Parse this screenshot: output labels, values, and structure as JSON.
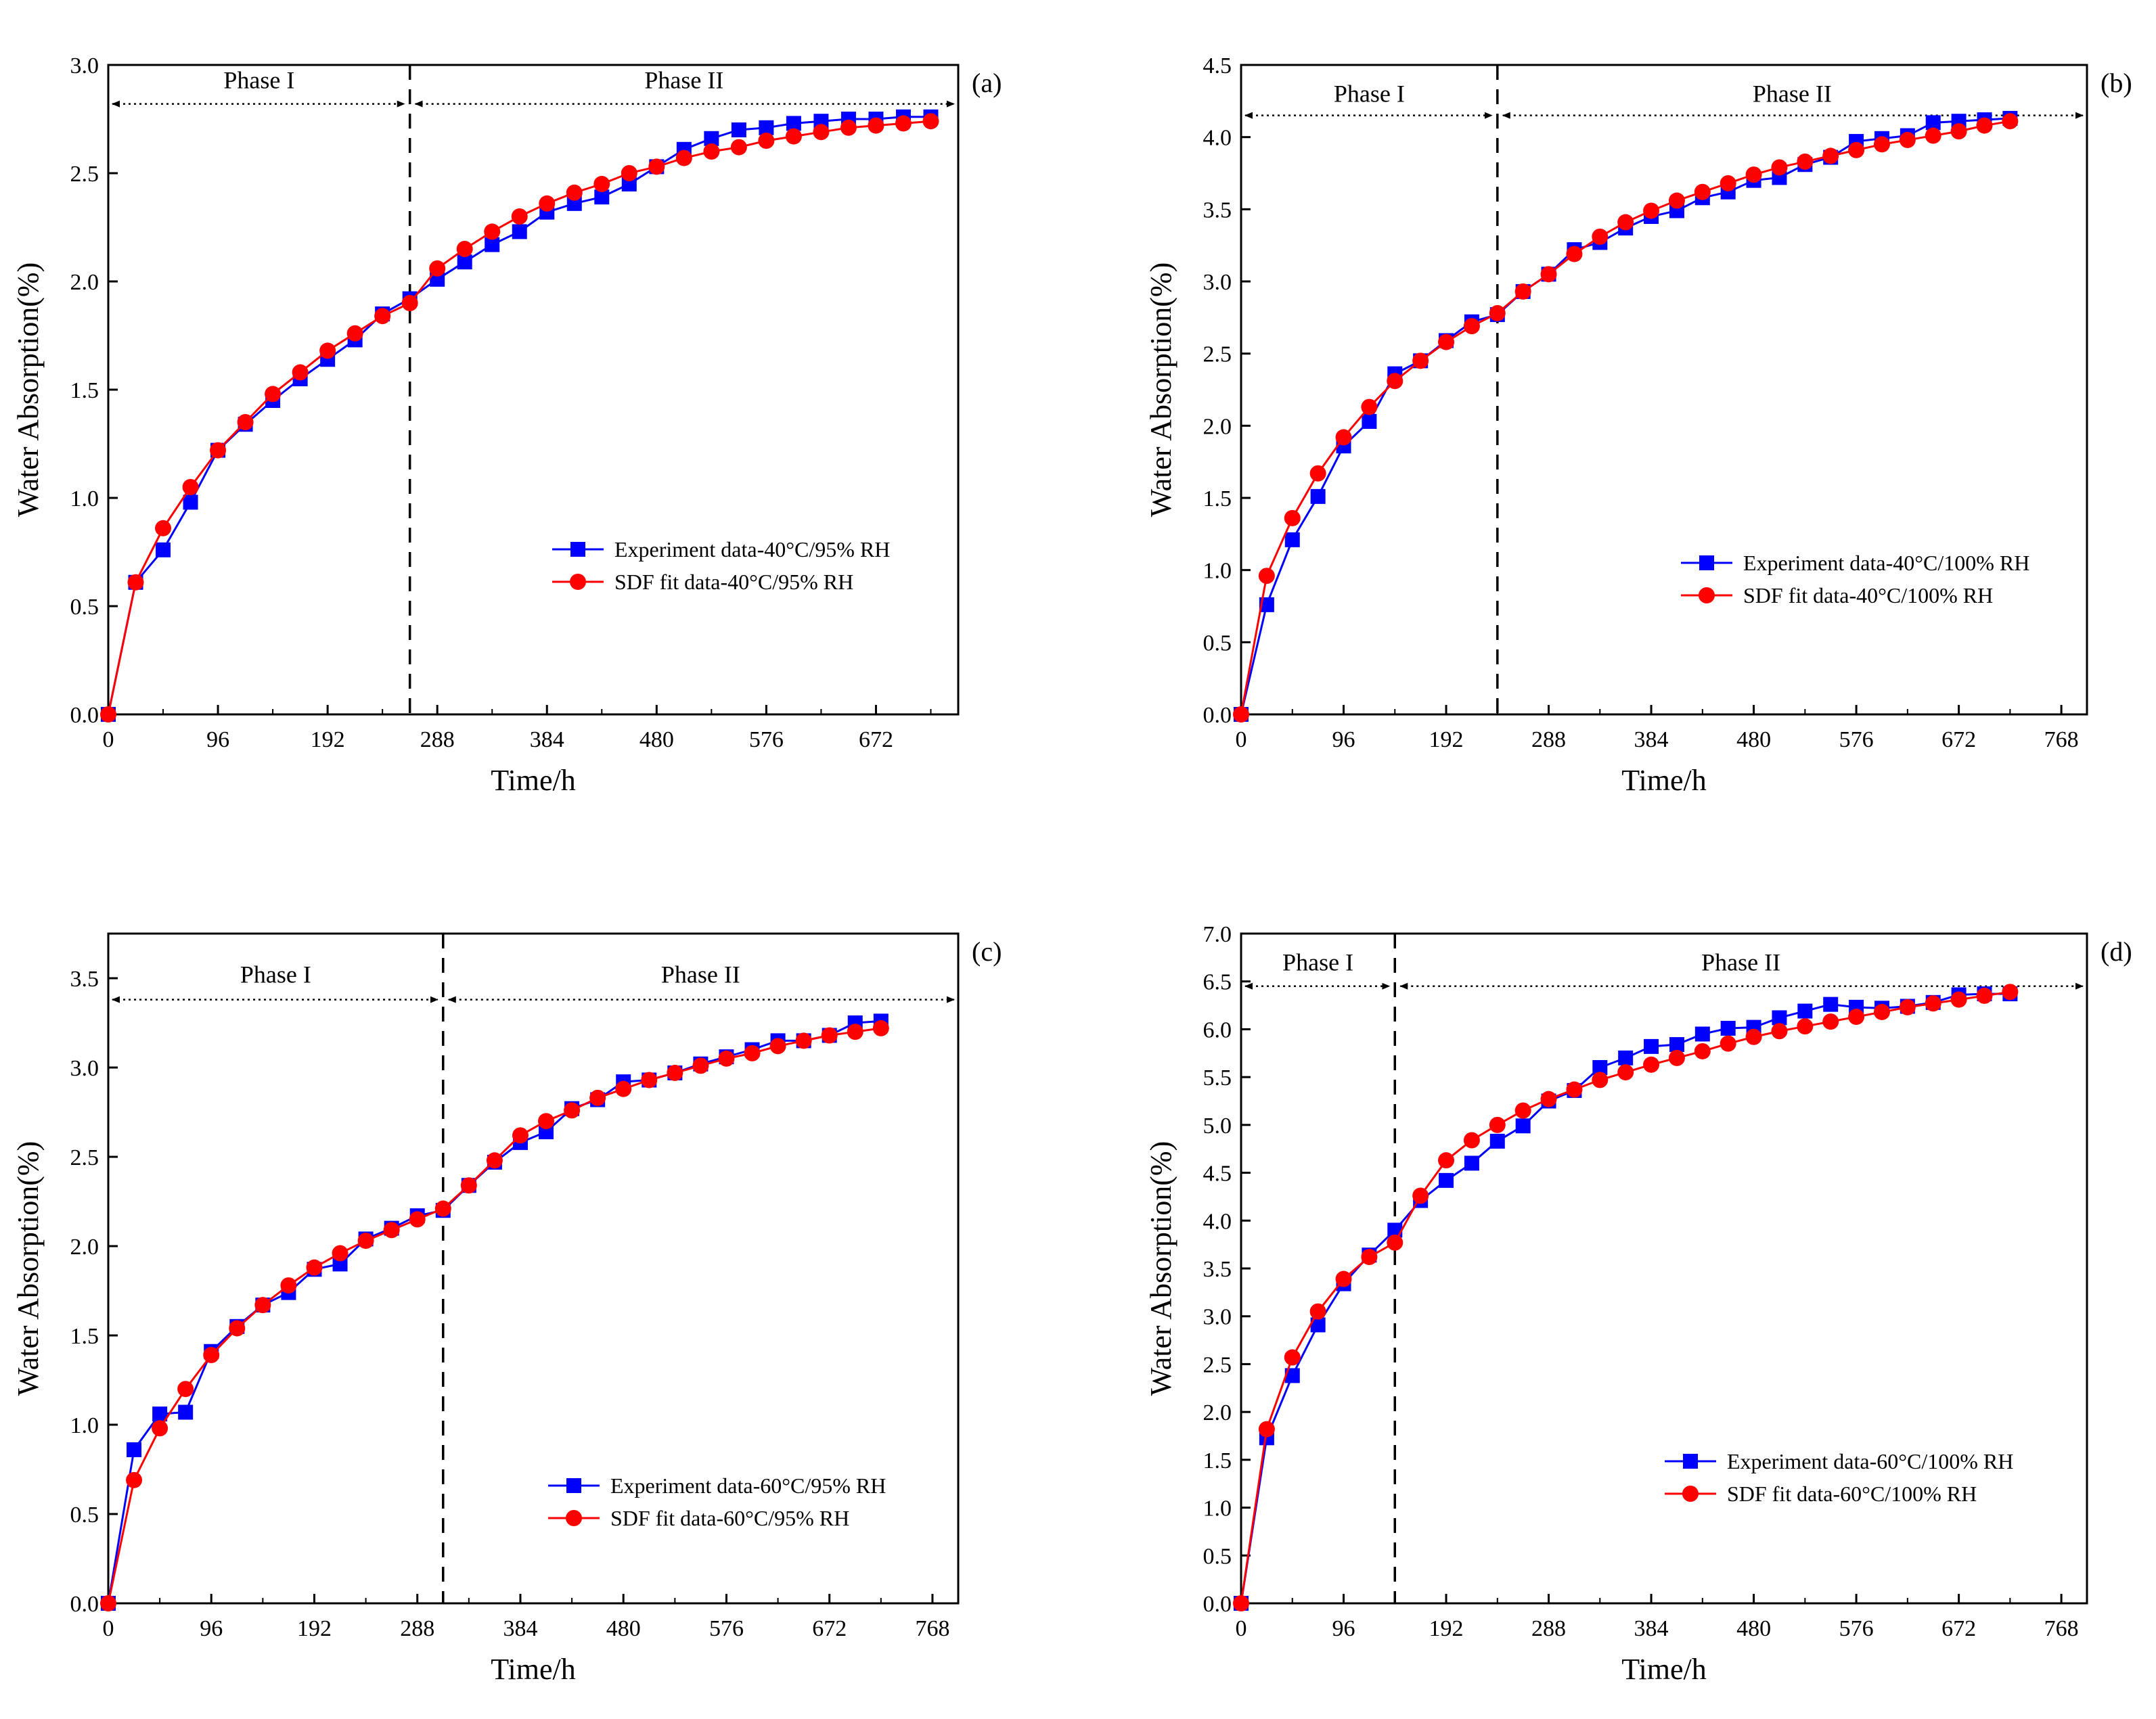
{
  "figure": {
    "series_colors": {
      "experiment": "#0000ff",
      "fit": "#ff0000"
    },
    "axis_color": "#000000"
  },
  "chart_data": [
    {
      "type": "line",
      "panel": "(a)",
      "xlabel": "Time/h",
      "ylabel": "Water Absorption(%)",
      "xlim": [
        0,
        744
      ],
      "ylim": [
        0,
        3.0
      ],
      "xticks": [
        0,
        96,
        192,
        288,
        384,
        480,
        576,
        672
      ],
      "yticks": [
        0.0,
        0.5,
        1.0,
        1.5,
        2.0,
        2.5,
        3.0
      ],
      "ytick_decimals": 1,
      "phase_boundary": 264,
      "phase_arrow_y": 2.82,
      "phase_label_y": 2.93,
      "phases": [
        "Phase I",
        "Phase II"
      ],
      "legend_position": "center-right",
      "series": [
        {
          "name": "Experiment data-40°C/95% RH",
          "marker": "square",
          "color": "#0000ff",
          "x": [
            0,
            24,
            48,
            72,
            96,
            120,
            144,
            168,
            192,
            216,
            240,
            264,
            288,
            312,
            336,
            360,
            384,
            408,
            432,
            456,
            480,
            504,
            528,
            552,
            576,
            600,
            624,
            648,
            672,
            696,
            720
          ],
          "y": [
            0,
            0.61,
            0.76,
            0.98,
            1.22,
            1.34,
            1.45,
            1.55,
            1.64,
            1.73,
            1.85,
            1.92,
            2.01,
            2.09,
            2.17,
            2.23,
            2.32,
            2.36,
            2.39,
            2.45,
            2.53,
            2.61,
            2.66,
            2.7,
            2.71,
            2.73,
            2.74,
            2.75,
            2.75,
            2.76,
            2.76
          ]
        },
        {
          "name": "SDF fit data-40°C/95% RH",
          "marker": "circle",
          "color": "#ff0000",
          "x": [
            0,
            24,
            48,
            72,
            96,
            120,
            144,
            168,
            192,
            216,
            240,
            264,
            288,
            312,
            336,
            360,
            384,
            408,
            432,
            456,
            480,
            504,
            528,
            552,
            576,
            600,
            624,
            648,
            672,
            696,
            720
          ],
          "y": [
            0,
            0.61,
            0.86,
            1.05,
            1.22,
            1.35,
            1.48,
            1.58,
            1.68,
            1.76,
            1.84,
            1.9,
            2.06,
            2.15,
            2.23,
            2.3,
            2.36,
            2.41,
            2.45,
            2.5,
            2.53,
            2.57,
            2.6,
            2.62,
            2.65,
            2.67,
            2.69,
            2.71,
            2.72,
            2.73,
            2.74
          ]
        }
      ]
    },
    {
      "type": "line",
      "panel": "(b)",
      "xlabel": "Time/h",
      "ylabel": "Water Absorption(%)",
      "xlim": [
        0,
        792
      ],
      "ylim": [
        0,
        4.5
      ],
      "xticks": [
        0,
        96,
        192,
        288,
        384,
        480,
        576,
        672,
        768
      ],
      "yticks": [
        0.0,
        0.5,
        1.0,
        1.5,
        2.0,
        2.5,
        3.0,
        3.5,
        4.0,
        4.5
      ],
      "ytick_decimals": 1,
      "phase_boundary": 240,
      "phase_arrow_y": 4.15,
      "phase_label_y": 4.3,
      "phases": [
        "Phase I",
        "Phase II"
      ],
      "legend_position": "center-right",
      "series": [
        {
          "name": "Experiment data-40°C/100% RH",
          "marker": "square",
          "color": "#0000ff",
          "x": [
            0,
            24,
            48,
            72,
            96,
            120,
            144,
            168,
            192,
            216,
            240,
            264,
            288,
            312,
            336,
            360,
            384,
            408,
            432,
            456,
            480,
            504,
            528,
            552,
            576,
            600,
            624,
            648,
            672,
            696,
            720
          ],
          "y": [
            0,
            0.76,
            1.21,
            1.51,
            1.86,
            2.03,
            2.36,
            2.45,
            2.59,
            2.72,
            2.77,
            2.93,
            3.05,
            3.22,
            3.27,
            3.37,
            3.45,
            3.49,
            3.58,
            3.62,
            3.7,
            3.72,
            3.81,
            3.86,
            3.97,
            3.99,
            4.01,
            4.1,
            4.11,
            4.12,
            4.13
          ]
        },
        {
          "name": "SDF fit data-40°C/100% RH",
          "marker": "circle",
          "color": "#ff0000",
          "x": [
            0,
            24,
            48,
            72,
            96,
            120,
            144,
            168,
            192,
            216,
            240,
            264,
            288,
            312,
            336,
            360,
            384,
            408,
            432,
            456,
            480,
            504,
            528,
            552,
            576,
            600,
            624,
            648,
            672,
            696,
            720
          ],
          "y": [
            0,
            0.96,
            1.36,
            1.67,
            1.92,
            2.13,
            2.31,
            2.45,
            2.58,
            2.69,
            2.78,
            2.93,
            3.05,
            3.19,
            3.31,
            3.41,
            3.49,
            3.56,
            3.62,
            3.68,
            3.74,
            3.79,
            3.83,
            3.87,
            3.91,
            3.95,
            3.98,
            4.01,
            4.04,
            4.08,
            4.11
          ]
        }
      ]
    },
    {
      "type": "line",
      "panel": "(c)",
      "xlabel": "Time/h",
      "ylabel": "Water Absorption(%)",
      "xlim": [
        0,
        792
      ],
      "ylim": [
        0,
        3.75
      ],
      "xticks": [
        0,
        96,
        192,
        288,
        384,
        480,
        576,
        672,
        768
      ],
      "yticks": [
        0.0,
        0.5,
        1.0,
        1.5,
        2.0,
        2.5,
        3.0,
        3.5
      ],
      "ytick_decimals": 1,
      "phase_boundary": 312,
      "phase_arrow_y": 3.38,
      "phase_label_y": 3.52,
      "phases": [
        "Phase I",
        "Phase II"
      ],
      "legend_position": "lower-right",
      "series": [
        {
          "name": "Experiment data-60°C/95% RH",
          "marker": "square",
          "color": "#0000ff",
          "x": [
            0,
            24,
            48,
            72,
            96,
            120,
            144,
            168,
            192,
            216,
            240,
            264,
            288,
            312,
            336,
            360,
            384,
            408,
            432,
            456,
            480,
            504,
            528,
            552,
            576,
            600,
            624,
            648,
            672,
            696,
            720
          ],
          "y": [
            0,
            0.86,
            1.06,
            1.07,
            1.41,
            1.55,
            1.67,
            1.74,
            1.87,
            1.9,
            2.04,
            2.1,
            2.17,
            2.2,
            2.34,
            2.47,
            2.58,
            2.64,
            2.77,
            2.82,
            2.92,
            2.93,
            2.97,
            3.02,
            3.06,
            3.1,
            3.15,
            3.15,
            3.18,
            3.25,
            3.26
          ]
        },
        {
          "name": "SDF fit data-60°C/95% RH",
          "marker": "circle",
          "color": "#ff0000",
          "x": [
            0,
            24,
            48,
            72,
            96,
            120,
            144,
            168,
            192,
            216,
            240,
            264,
            288,
            312,
            336,
            360,
            384,
            408,
            432,
            456,
            480,
            504,
            528,
            552,
            576,
            600,
            624,
            648,
            672,
            696,
            720
          ],
          "y": [
            0,
            0.69,
            0.98,
            1.2,
            1.39,
            1.54,
            1.67,
            1.78,
            1.88,
            1.96,
            2.03,
            2.09,
            2.15,
            2.21,
            2.34,
            2.48,
            2.62,
            2.7,
            2.76,
            2.83,
            2.88,
            2.93,
            2.97,
            3.01,
            3.05,
            3.08,
            3.12,
            3.15,
            3.18,
            3.2,
            3.22
          ]
        }
      ]
    },
    {
      "type": "line",
      "panel": "(d)",
      "xlabel": "Time/h",
      "ylabel": "Water Absorption(%)",
      "xlim": [
        0,
        792
      ],
      "ylim": [
        0,
        7.0
      ],
      "xticks": [
        0,
        96,
        192,
        288,
        384,
        480,
        576,
        672,
        768
      ],
      "yticks": [
        0.0,
        0.5,
        1.0,
        1.5,
        2.0,
        2.5,
        3.0,
        3.5,
        4.0,
        4.5,
        5.0,
        5.5,
        6.0,
        6.5,
        7.0
      ],
      "ytick_decimals": 1,
      "phase_boundary": 144,
      "phase_arrow_y": 6.45,
      "phase_label_y": 6.7,
      "phases": [
        "Phase I",
        "Phase II"
      ],
      "legend_position": "lower-right",
      "series": [
        {
          "name": "Experiment data-60°C/100% RH",
          "marker": "square",
          "color": "#0000ff",
          "x": [
            0,
            24,
            48,
            72,
            96,
            120,
            144,
            168,
            192,
            216,
            240,
            264,
            288,
            312,
            336,
            360,
            384,
            408,
            432,
            456,
            480,
            504,
            528,
            552,
            576,
            600,
            624,
            648,
            672,
            696,
            720
          ],
          "y": [
            0,
            1.73,
            2.38,
            2.91,
            3.34,
            3.64,
            3.9,
            4.21,
            4.42,
            4.6,
            4.83,
            4.99,
            5.25,
            5.36,
            5.6,
            5.7,
            5.82,
            5.84,
            5.95,
            6.01,
            6.02,
            6.12,
            6.19,
            6.26,
            6.23,
            6.22,
            6.24,
            6.28,
            6.36,
            6.37,
            6.37
          ]
        },
        {
          "name": "SDF fit data-60°C/100% RH",
          "marker": "circle",
          "color": "#ff0000",
          "x": [
            0,
            24,
            48,
            72,
            96,
            120,
            144,
            168,
            192,
            216,
            240,
            264,
            288,
            312,
            336,
            360,
            384,
            408,
            432,
            456,
            480,
            504,
            528,
            552,
            576,
            600,
            624,
            648,
            672,
            696,
            720
          ],
          "y": [
            0,
            1.82,
            2.57,
            3.05,
            3.39,
            3.62,
            3.77,
            4.26,
            4.63,
            4.84,
            5.0,
            5.15,
            5.27,
            5.37,
            5.47,
            5.55,
            5.63,
            5.7,
            5.77,
            5.85,
            5.92,
            5.98,
            6.03,
            6.08,
            6.13,
            6.18,
            6.23,
            6.27,
            6.31,
            6.35,
            6.39
          ]
        }
      ]
    }
  ]
}
